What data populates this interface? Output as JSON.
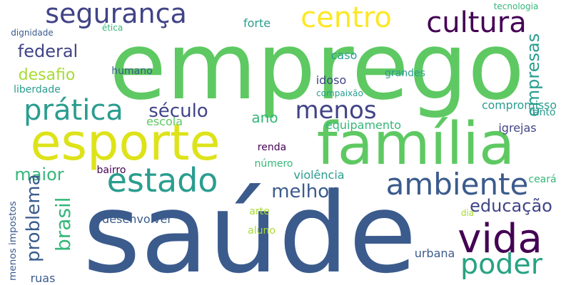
{
  "words": [
    {
      "text": "saúde",
      "color": "#3b5b8c"
    },
    {
      "text": "emprego",
      "color": "#5ec962"
    },
    {
      "text": "esporte",
      "color": "#dde318"
    },
    {
      "text": "família",
      "color": "#5ec962"
    },
    {
      "text": "vida",
      "color": "#440154"
    },
    {
      "text": "segurança",
      "color": "#414487"
    },
    {
      "text": "centro",
      "color": "#fde725"
    },
    {
      "text": "estado",
      "color": "#2a9d8f"
    },
    {
      "text": "ambiente",
      "color": "#3b5b8c"
    },
    {
      "text": "cultura",
      "color": "#440154"
    },
    {
      "text": "prática",
      "color": "#2a9d8f"
    },
    {
      "text": "menos",
      "color": "#414487"
    },
    {
      "text": "poder",
      "color": "#26a382"
    },
    {
      "text": "século",
      "color": "#414487"
    },
    {
      "text": "melhor",
      "color": "#3b5b8c"
    },
    {
      "text": "educação",
      "color": "#414487"
    },
    {
      "text": "federal",
      "color": "#414487"
    },
    {
      "text": "desafio",
      "color": "#a8db34"
    },
    {
      "text": "ano",
      "color": "#35b779"
    },
    {
      "text": "maior",
      "color": "#35b779"
    },
    {
      "text": "problema",
      "color": "#3b5b8c"
    },
    {
      "text": "brasil",
      "color": "#35b779"
    },
    {
      "text": "empresas",
      "color": "#2a9d8f"
    },
    {
      "text": "compromisso",
      "color": "#2a9d8f"
    },
    {
      "text": "liberdade",
      "color": "#2a9d8f"
    },
    {
      "text": "humano",
      "color": "#3b5b8c"
    },
    {
      "text": "idoso",
      "color": "#414487"
    },
    {
      "text": "forte",
      "color": "#2a9d8f"
    },
    {
      "text": "caso",
      "color": "#2a9d8f"
    },
    {
      "text": "grandes",
      "color": "#2a9d8f"
    },
    {
      "text": "equipamento",
      "color": "#35b779"
    },
    {
      "text": "escola",
      "color": "#5ec962"
    },
    {
      "text": "renda",
      "color": "#440154"
    },
    {
      "text": "número",
      "color": "#35b779"
    },
    {
      "text": "bairro",
      "color": "#440154"
    },
    {
      "text": "violência",
      "color": "#2a9d8f"
    },
    {
      "text": "desenvolver",
      "color": "#3b5b8c"
    },
    {
      "text": "arte",
      "color": "#a8db34"
    },
    {
      "text": "aluno",
      "color": "#a8db34"
    },
    {
      "text": "urbana",
      "color": "#3b5b8c"
    },
    {
      "text": "igrejas",
      "color": "#414487"
    },
    {
      "text": "tanto",
      "color": "#2a9d8f"
    },
    {
      "text": "ceará",
      "color": "#35b779"
    },
    {
      "text": "dia",
      "color": "#a8db34"
    },
    {
      "text": "dignidade",
      "color": "#3b5b8c"
    },
    {
      "text": "ética",
      "color": "#35b779"
    },
    {
      "text": "tecnologia",
      "color": "#35b779"
    },
    {
      "text": "compaixão",
      "color": "#2a9d8f"
    },
    {
      "text": "menos impostos",
      "color": "#3b5b8c"
    },
    {
      "text": "ruas",
      "color": "#3b5b8c"
    }
  ]
}
